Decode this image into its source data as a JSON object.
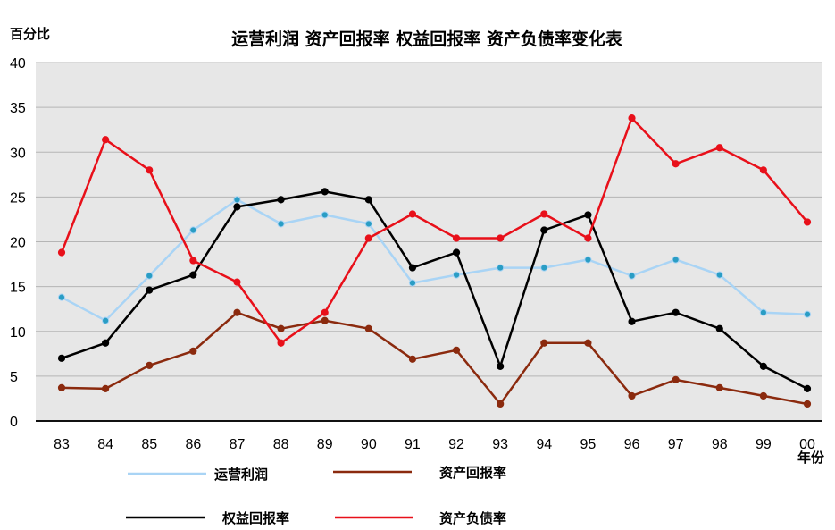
{
  "chart_data": {
    "type": "line",
    "title": "运营利润 资产回报率 权益回报率 资产负债率变化表",
    "ylabel": "百分比",
    "xlabel": "年份",
    "ylim": [
      0,
      40
    ],
    "yticks": [
      0,
      5,
      10,
      15,
      20,
      25,
      30,
      35,
      40
    ],
    "grid": true,
    "legend_position": "bottom",
    "categories": [
      "83",
      "84",
      "85",
      "86",
      "87",
      "88",
      "89",
      "90",
      "91",
      "92",
      "93",
      "94",
      "95",
      "96",
      "97",
      "98",
      "99",
      "00"
    ],
    "x": [
      83,
      84,
      85,
      86,
      87,
      88,
      89,
      90,
      91,
      92,
      93,
      94,
      95,
      96,
      97,
      98,
      99,
      100
    ],
    "series": [
      {
        "name": "运营利润",
        "color": "#a9d4f5",
        "marker_color": "#2a9dc4",
        "values": [
          13.8,
          11.2,
          16.2,
          21.3,
          24.7,
          22.0,
          23.0,
          22.0,
          15.4,
          16.3,
          17.1,
          17.1,
          18.0,
          16.2,
          18.0,
          16.3,
          12.1,
          11.9
        ]
      },
      {
        "name": "资产回报率",
        "color": "#8b2a0e",
        "marker_color": "#8b2a0e",
        "values": [
          3.7,
          3.6,
          6.2,
          7.8,
          12.1,
          10.3,
          11.2,
          10.3,
          6.9,
          7.9,
          1.9,
          8.7,
          8.7,
          2.8,
          4.6,
          3.7,
          2.8,
          1.9
        ]
      },
      {
        "name": "权益回报率",
        "color": "#000000",
        "marker_color": "#000000",
        "values": [
          7.0,
          8.7,
          14.6,
          16.3,
          23.9,
          24.7,
          25.6,
          24.7,
          17.1,
          18.8,
          6.1,
          21.3,
          23.0,
          11.1,
          12.1,
          10.3,
          6.1,
          3.6
        ]
      },
      {
        "name": "资产负债率",
        "color": "#e8101a",
        "marker_color": "#e8101a",
        "values": [
          18.8,
          31.4,
          28.0,
          17.9,
          15.5,
          8.7,
          12.1,
          20.4,
          23.1,
          20.4,
          20.4,
          23.1,
          20.4,
          33.8,
          28.7,
          30.5,
          28.0,
          22.2
        ]
      }
    ]
  }
}
